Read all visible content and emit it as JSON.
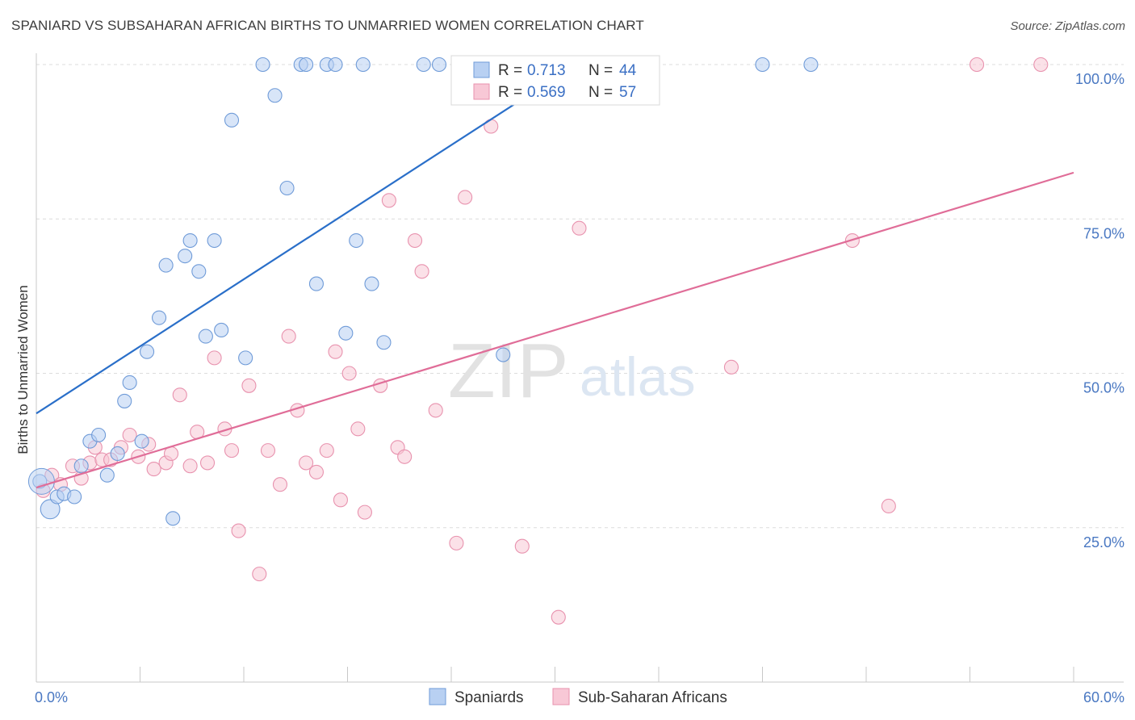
{
  "title": "SPANIARD VS SUBSAHARAN AFRICAN BIRTHS TO UNMARRIED WOMEN CORRELATION CHART",
  "source": "Source: ZipAtlas.com",
  "watermark": {
    "zip": "ZIP",
    "atlas": "atlas"
  },
  "colors": {
    "blue_fill": "#b8d0f2",
    "blue_stroke": "#6f9bd8",
    "blue_line": "#2a6fc9",
    "pink_fill": "#f8c8d6",
    "pink_stroke": "#e892ae",
    "pink_line": "#e06d98"
  },
  "legend": {
    "rows": [
      {
        "r_label": "R =",
        "r_value": "0.713",
        "n_label": "N =",
        "n_value": "44"
      },
      {
        "r_label": "R =",
        "r_value": "0.569",
        "n_label": "N =",
        "n_value": "57"
      }
    ]
  },
  "bottom_legend": [
    "Spaniards",
    "Sub-Saharan Africans"
  ],
  "chart_data": {
    "type": "scatter",
    "xlabel": "",
    "ylabel": "Births to Unmarried Women",
    "xlim": [
      0,
      60
    ],
    "ylim": [
      0,
      100
    ],
    "x_tick_labels": [
      "0.0%",
      "60.0%"
    ],
    "y_ticks": [
      25,
      50,
      75,
      100
    ],
    "y_tick_labels": [
      "25.0%",
      "50.0%",
      "75.0%",
      "100.0%"
    ],
    "grid": true,
    "legend_position": "top-center",
    "series": [
      {
        "name": "Spaniards",
        "trend": {
          "x": [
            0,
            31.2
          ],
          "y": [
            43.5,
            100
          ]
        },
        "points": [
          [
            0.2,
            32.5,
            1.0
          ],
          [
            0.8,
            28.0,
            1.4
          ],
          [
            1.2,
            30.0,
            1.0
          ],
          [
            1.6,
            30.5,
            1.0
          ],
          [
            2.2,
            30.0,
            1.0
          ],
          [
            2.6,
            35.0,
            1.0
          ],
          [
            3.1,
            39.0,
            1.0
          ],
          [
            3.6,
            40.0,
            1.0
          ],
          [
            4.1,
            33.5,
            1.0
          ],
          [
            4.7,
            37.0,
            1.0
          ],
          [
            5.1,
            45.5,
            1.0
          ],
          [
            5.4,
            48.5,
            1.0
          ],
          [
            6.1,
            39.0,
            1.0
          ],
          [
            6.4,
            53.5,
            1.0
          ],
          [
            7.1,
            59.0,
            1.0
          ],
          [
            7.5,
            67.5,
            1.0
          ],
          [
            7.9,
            26.5,
            1.0
          ],
          [
            8.6,
            69.0,
            1.0
          ],
          [
            8.9,
            71.5,
            1.0
          ],
          [
            9.4,
            66.5,
            1.0
          ],
          [
            9.8,
            56.0,
            1.0
          ],
          [
            10.3,
            71.5,
            1.0
          ],
          [
            10.7,
            57.0,
            1.0
          ],
          [
            11.3,
            91.0,
            1.0
          ],
          [
            12.1,
            52.5,
            1.0
          ],
          [
            13.1,
            100.0,
            1.0
          ],
          [
            13.8,
            95.0,
            1.0
          ],
          [
            14.5,
            80.0,
            1.0
          ],
          [
            15.3,
            100.0,
            1.0
          ],
          [
            15.6,
            100.0,
            1.0
          ],
          [
            16.2,
            64.5,
            1.0
          ],
          [
            16.8,
            100.0,
            1.0
          ],
          [
            17.3,
            100.0,
            1.0
          ],
          [
            17.9,
            56.5,
            1.0
          ],
          [
            18.5,
            71.5,
            1.0
          ],
          [
            18.9,
            100.0,
            1.0
          ],
          [
            19.4,
            64.5,
            1.0
          ],
          [
            20.1,
            55.0,
            1.0
          ],
          [
            22.4,
            100.0,
            1.0
          ],
          [
            23.3,
            100.0,
            1.0
          ],
          [
            27.0,
            53.0,
            1.0
          ],
          [
            31.2,
            100.0,
            1.0
          ],
          [
            42.0,
            100.0,
            1.0
          ],
          [
            44.8,
            100.0,
            1.0
          ]
        ]
      },
      {
        "name": "Sub-Saharan Africans",
        "trend": {
          "x": [
            0,
            60
          ],
          "y": [
            31.5,
            82.5
          ]
        },
        "points": [
          [
            0.4,
            31.0,
            1.0
          ],
          [
            0.9,
            33.5,
            1.0
          ],
          [
            1.4,
            32.0,
            1.0
          ],
          [
            2.1,
            35.0,
            1.0
          ],
          [
            2.6,
            33.0,
            1.0
          ],
          [
            3.1,
            35.5,
            1.0
          ],
          [
            3.4,
            38.0,
            1.0
          ],
          [
            3.8,
            36.0,
            1.0
          ],
          [
            4.3,
            36.0,
            1.0
          ],
          [
            4.9,
            38.0,
            1.0
          ],
          [
            5.4,
            40.0,
            1.0
          ],
          [
            5.9,
            36.5,
            1.0
          ],
          [
            6.5,
            38.5,
            1.0
          ],
          [
            6.8,
            34.5,
            1.0
          ],
          [
            7.5,
            35.5,
            1.0
          ],
          [
            7.8,
            37.0,
            1.0
          ],
          [
            8.3,
            46.5,
            1.0
          ],
          [
            8.9,
            35.0,
            1.0
          ],
          [
            9.3,
            40.5,
            1.0
          ],
          [
            9.9,
            35.5,
            1.0
          ],
          [
            10.3,
            52.5,
            1.0
          ],
          [
            10.9,
            41.0,
            1.0
          ],
          [
            11.3,
            37.5,
            1.0
          ],
          [
            11.7,
            24.5,
            1.0
          ],
          [
            12.3,
            48.0,
            1.0
          ],
          [
            12.9,
            17.5,
            1.0
          ],
          [
            13.4,
            37.5,
            1.0
          ],
          [
            14.1,
            32.0,
            1.0
          ],
          [
            14.6,
            56.0,
            1.0
          ],
          [
            15.1,
            44.0,
            1.0
          ],
          [
            15.6,
            35.5,
            1.0
          ],
          [
            16.2,
            34.0,
            1.0
          ],
          [
            16.8,
            37.5,
            1.0
          ],
          [
            17.3,
            53.5,
            1.0
          ],
          [
            17.6,
            29.5,
            1.0
          ],
          [
            18.1,
            50.0,
            1.0
          ],
          [
            18.6,
            41.0,
            1.0
          ],
          [
            19.0,
            27.5,
            1.0
          ],
          [
            19.9,
            48.0,
            1.0
          ],
          [
            20.4,
            78.0,
            1.0
          ],
          [
            20.9,
            38.0,
            1.0
          ],
          [
            21.3,
            36.5,
            1.0
          ],
          [
            21.9,
            71.5,
            1.0
          ],
          [
            22.3,
            66.5,
            1.0
          ],
          [
            23.1,
            44.0,
            1.0
          ],
          [
            24.3,
            22.5,
            1.0
          ],
          [
            24.8,
            78.5,
            1.0
          ],
          [
            26.3,
            90.0,
            1.0
          ],
          [
            28.1,
            22.0,
            1.0
          ],
          [
            30.2,
            10.5,
            1.0
          ],
          [
            31.4,
            73.5,
            1.0
          ],
          [
            35.0,
            100.0,
            1.0
          ],
          [
            40.2,
            51.0,
            1.0
          ],
          [
            47.2,
            71.5,
            1.0
          ],
          [
            49.3,
            28.5,
            1.0
          ],
          [
            54.4,
            100.0,
            1.0
          ],
          [
            58.1,
            100.0,
            1.0
          ]
        ]
      }
    ]
  }
}
